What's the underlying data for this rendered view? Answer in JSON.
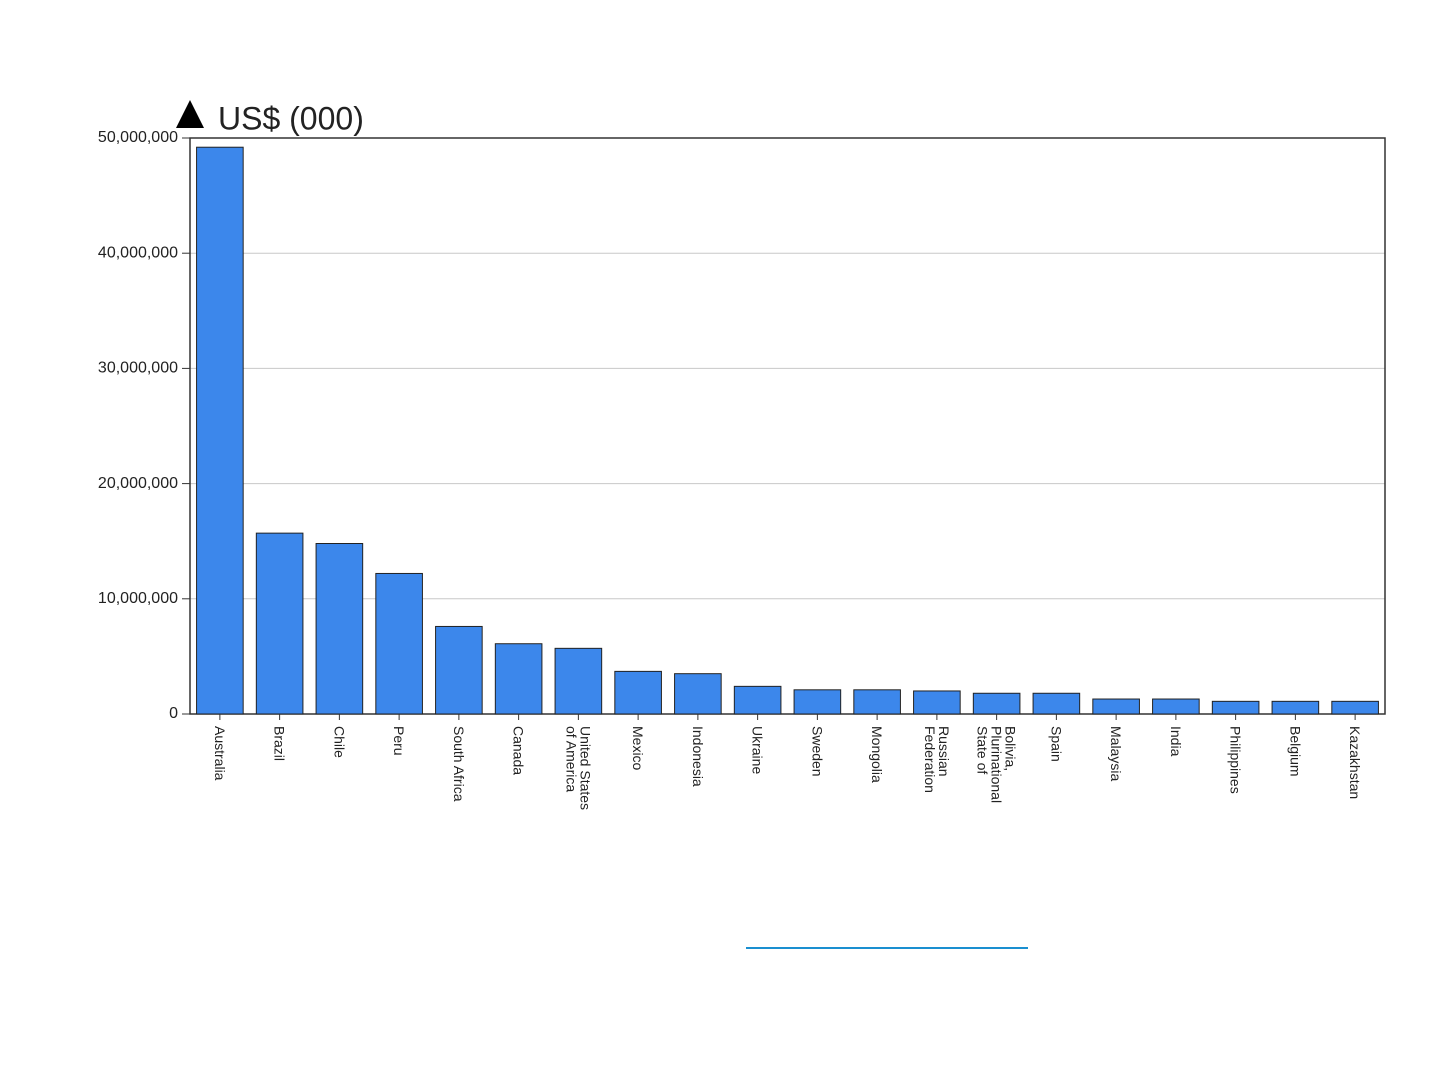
{
  "chart_data": {
    "type": "bar",
    "y_label": "US$ (000)",
    "categories": [
      "Australia",
      "Brazil",
      "Chile",
      "Peru",
      "South Africa",
      "Canada",
      "United States of America",
      "Mexico",
      "Indonesia",
      "Ukraine",
      "Sweden",
      "Mongolia",
      "Russian Federation",
      "Bolivia, Plurinational State of",
      "Spain",
      "Malaysia",
      "India",
      "Philippines",
      "Belgium",
      "Kazakhstan"
    ],
    "values": [
      49200000,
      15700000,
      14800000,
      12200000,
      7600000,
      6100000,
      5700000,
      3700000,
      3500000,
      2400000,
      2100000,
      2100000,
      2000000,
      1800000,
      1800000,
      1300000,
      1300000,
      1100000,
      1100000,
      1100000
    ],
    "color": "#3c87eb",
    "ylim": [
      0,
      50000000
    ],
    "yticks": [
      0,
      {
        "value": 10000000,
        "label": "10,000,000"
      },
      {
        "value": 20000000,
        "label": "20,000,000"
      },
      {
        "value": 30000000,
        "label": "30,000,000"
      },
      {
        "value": 40000000,
        "label": "40,000,000"
      },
      {
        "value": 50000000,
        "label": "50,000,000"
      }
    ],
    "grid": true
  }
}
